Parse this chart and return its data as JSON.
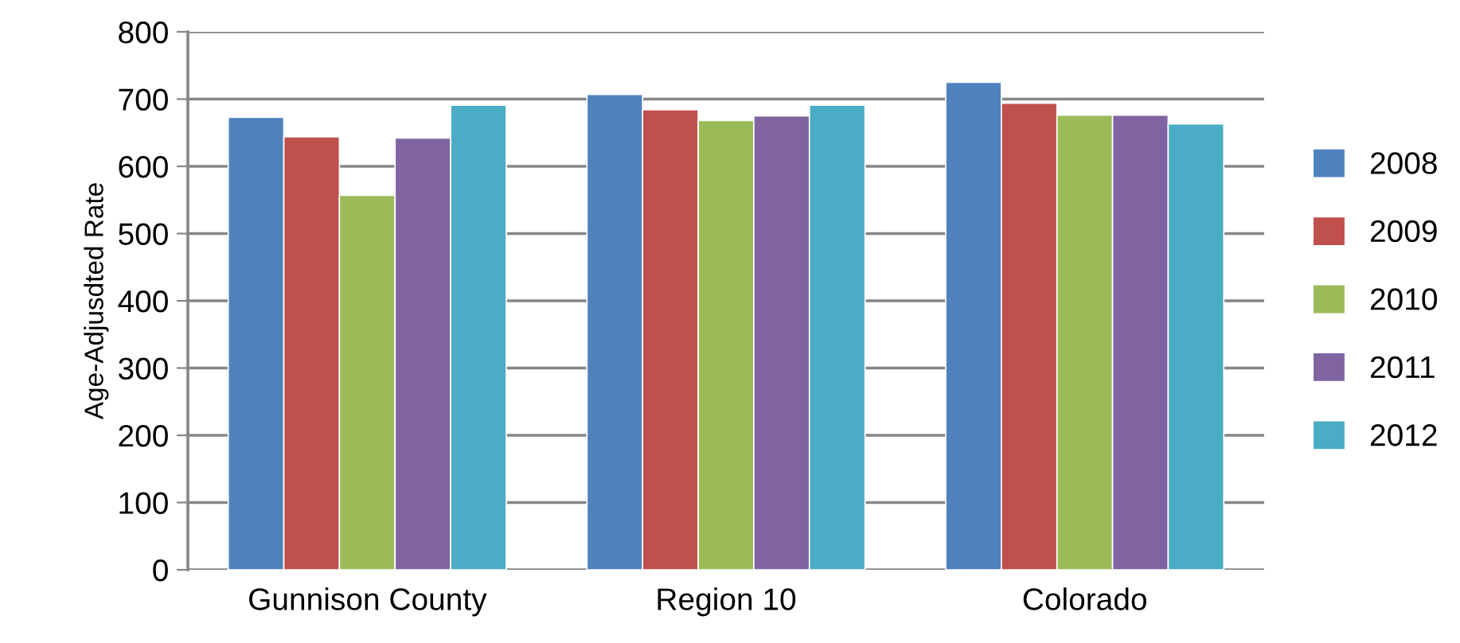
{
  "chart_data": {
    "type": "bar",
    "ylabel": "Age-Adjusdted Rate",
    "categories": [
      "Gunnison County",
      "Region 10",
      "Colorado"
    ],
    "series": [
      {
        "name": "2008",
        "color": "#4f81bd",
        "values": [
          673,
          707,
          725
        ]
      },
      {
        "name": "2009",
        "color": "#c0504d",
        "values": [
          644,
          684,
          694
        ]
      },
      {
        "name": "2010",
        "color": "#9bbb59",
        "values": [
          557,
          668,
          676
        ]
      },
      {
        "name": "2011",
        "color": "#8064a2",
        "values": [
          642,
          675,
          676
        ]
      },
      {
        "name": "2012",
        "color": "#4bacc6",
        "values": [
          691,
          691,
          663
        ]
      }
    ],
    "ylim": [
      0,
      800
    ],
    "yticks": [
      0,
      100,
      200,
      300,
      400,
      500,
      600,
      700,
      800
    ],
    "grid": "y",
    "legend": "right"
  }
}
